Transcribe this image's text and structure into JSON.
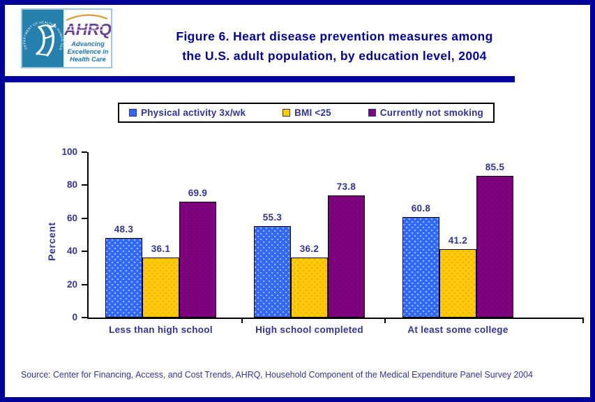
{
  "header": {
    "logo": {
      "circle_text": "DEPARTMENT OF HEALTH & HUMAN SERVICES • USA",
      "acronym": "AHRQ",
      "tagline_lines": [
        "Advancing",
        "Excellence in",
        "Health Care"
      ]
    },
    "title_line1": "Figure 6. Heart disease prevention measures among",
    "title_line2": "the U.S. adult population, by education level, 2004"
  },
  "chart_data": {
    "type": "bar",
    "title": "Figure 6. Heart disease prevention measures among the U.S. adult population, by education level, 2004",
    "categories": [
      "Less than high school",
      "High school completed",
      "At least some college"
    ],
    "series": [
      {
        "name": "Physical activity 3x/wk",
        "color": "#3366FF",
        "dot_color": "#99CCFF",
        "values": [
          48.3,
          55.3,
          60.8
        ]
      },
      {
        "name": "BMI <25",
        "color": "#FFCC00",
        "dot_color": "#FF9933",
        "values": [
          36.1,
          36.2,
          41.2
        ]
      },
      {
        "name": "Currently not smoking",
        "color": "#800080",
        "dot_color": "#6A006A",
        "values": [
          69.9,
          73.8,
          85.5
        ]
      }
    ],
    "xlabel": "",
    "ylabel": "Percent",
    "ylim": [
      0,
      100
    ],
    "yticks": [
      0,
      20,
      40,
      60,
      80,
      100
    ],
    "grid": false,
    "legend_position": "top",
    "bar_labels": true
  },
  "footer": {
    "source": "Source: Center for Financing, Access, and Cost Trends, AHRQ, Household Component of the Medical Expenditure Panel Survey 2004"
  },
  "colors": {
    "frame_navy": "#000099",
    "divider_navy": "#0000A0",
    "title_navy": "#000099",
    "chart_text_navy": "#333399",
    "axis_black": "#000000",
    "hhs_teal": "#2580AD",
    "ahrq_purple": "#6B3E97",
    "tagline_blue": "#1B75BB",
    "series_blue": "#3366FF",
    "series_yellow": "#FFCC00",
    "series_purple": "#800080"
  }
}
